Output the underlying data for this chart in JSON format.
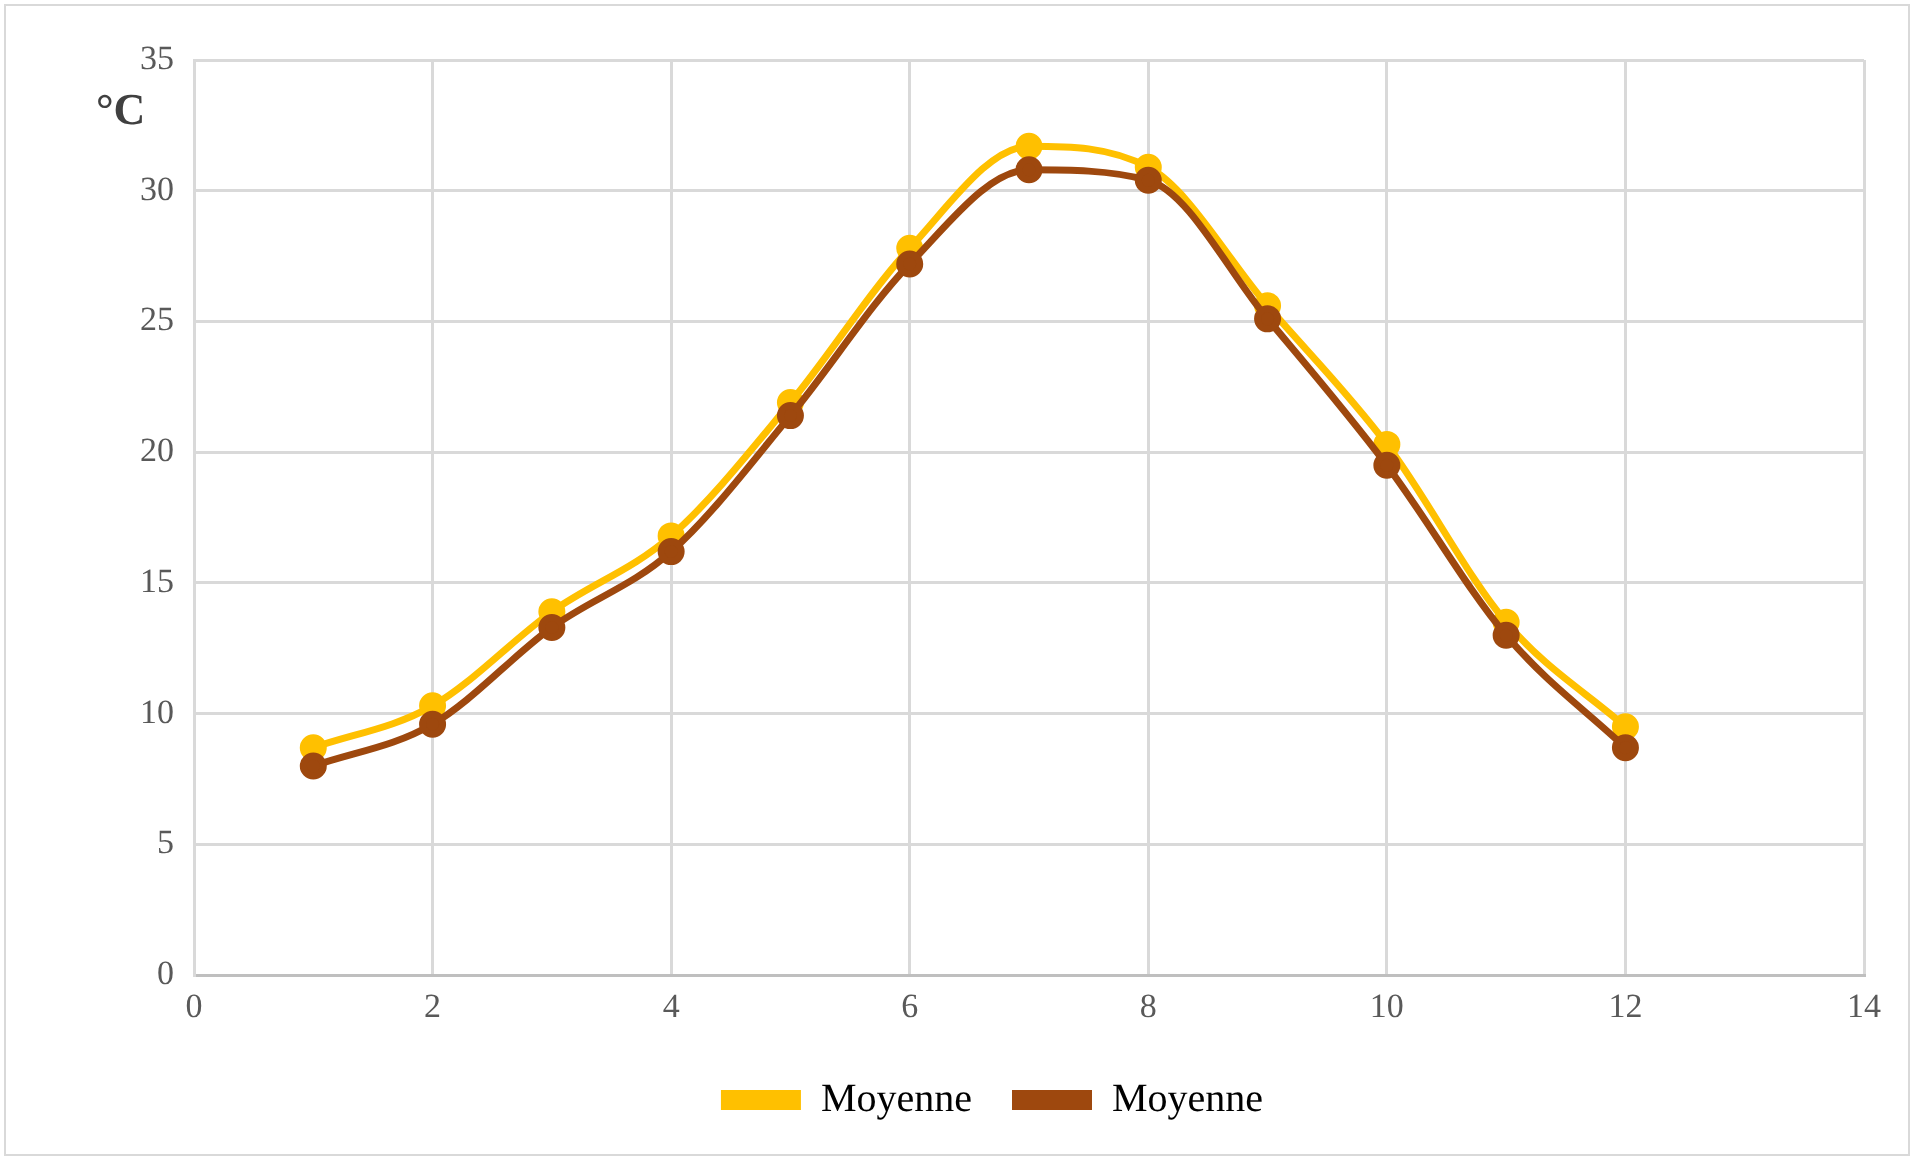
{
  "chart_data": {
    "type": "line",
    "ylabel": "°C",
    "x": [
      1,
      2,
      3,
      4,
      5,
      6,
      7,
      8,
      9,
      10,
      11,
      12
    ],
    "series": [
      {
        "name": "Moyenne",
        "color": "#ffc000",
        "values": [
          8.7,
          10.3,
          13.9,
          16.8,
          21.9,
          27.8,
          31.7,
          30.9,
          25.6,
          20.3,
          13.5,
          9.5
        ]
      },
      {
        "name": "Moyenne",
        "color": "#9e480e",
        "values": [
          8.0,
          9.6,
          13.3,
          16.2,
          21.4,
          27.2,
          30.8,
          30.4,
          25.1,
          19.5,
          13.0,
          8.7
        ]
      }
    ],
    "xlim": [
      0,
      14
    ],
    "xticks": [
      0,
      2,
      4,
      6,
      8,
      10,
      12,
      14
    ],
    "ylim": [
      0,
      35
    ],
    "yticks": [
      0,
      5,
      10,
      15,
      20,
      25,
      30,
      35
    ],
    "grid": true,
    "legend": "bottom",
    "marker": "circle",
    "line_style": "solid"
  }
}
